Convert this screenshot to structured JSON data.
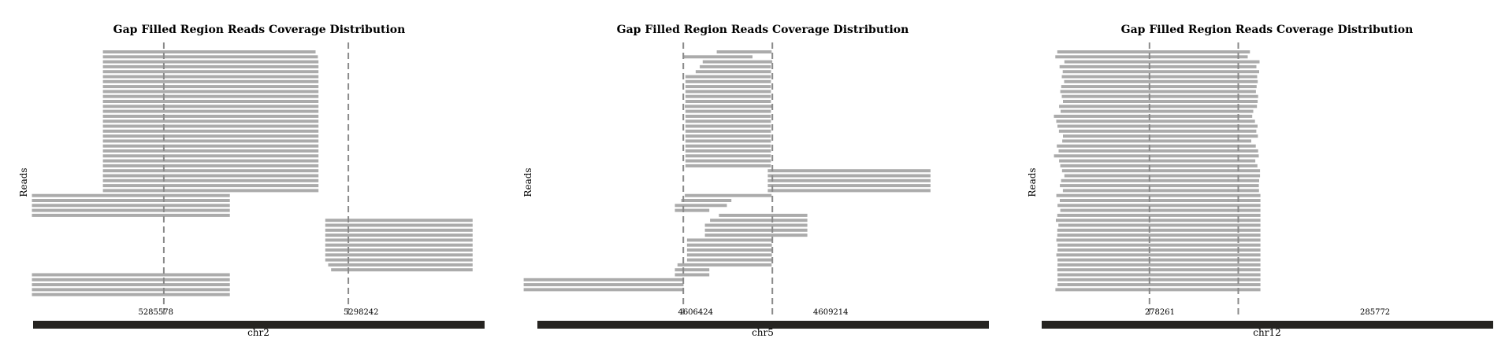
{
  "chart_data": [
    {
      "type": "read-alignment",
      "title": "Gap Filled Region Reads Coverage Distribution",
      "ylabel": "Reads",
      "chromosome": "chr2",
      "gap_boundaries": [
        5285578,
        5298242
      ],
      "boundary_labels": [
        "5285578",
        "5298242"
      ],
      "xlim": [
        5276610,
        5307590
      ],
      "reads": [
        [
          5281400,
          5295990
        ],
        [
          5281400,
          5296150
        ],
        [
          5281400,
          5296190
        ],
        [
          5281400,
          5296190
        ],
        [
          5281400,
          5296190
        ],
        [
          5281400,
          5296190
        ],
        [
          5281400,
          5296190
        ],
        [
          5281400,
          5296190
        ],
        [
          5281400,
          5296190
        ],
        [
          5281400,
          5296190
        ],
        [
          5281400,
          5296190
        ],
        [
          5281400,
          5296190
        ],
        [
          5281400,
          5296190
        ],
        [
          5281400,
          5296190
        ],
        [
          5281400,
          5296190
        ],
        [
          5281400,
          5296190
        ],
        [
          5281400,
          5296190
        ],
        [
          5281400,
          5296190
        ],
        [
          5281400,
          5296190
        ],
        [
          5281400,
          5296190
        ],
        [
          5281400,
          5296190
        ],
        [
          5281400,
          5296190
        ],
        [
          5281400,
          5296190
        ],
        [
          5281400,
          5296190
        ],
        [
          5281400,
          5296190
        ],
        [
          5281400,
          5296190
        ],
        [
          5281400,
          5296190
        ],
        [
          5281400,
          5296190
        ],
        [
          5281400,
          5296190
        ],
        [
          5276530,
          5290110
        ],
        [
          5276530,
          5290110
        ],
        [
          5276530,
          5290110
        ],
        [
          5276530,
          5290110
        ],
        [
          5276530,
          5290110
        ],
        [
          5296660,
          5306770
        ],
        [
          5296660,
          5306770
        ],
        [
          5296660,
          5306770
        ],
        [
          5296660,
          5306770
        ],
        [
          5296660,
          5306770
        ],
        [
          5296660,
          5306770
        ],
        [
          5296660,
          5306770
        ],
        [
          5296660,
          5306770
        ],
        [
          5296660,
          5306770
        ],
        [
          5296860,
          5306770
        ],
        [
          5297060,
          5306770
        ],
        [
          5276530,
          5290110
        ],
        [
          5276530,
          5290110
        ],
        [
          5276530,
          5290110
        ],
        [
          5276530,
          5290110
        ],
        [
          5276530,
          5290110
        ]
      ]
    },
    {
      "type": "read-alignment",
      "title": "Gap Filled Region Reads Coverage Distribution",
      "ylabel": "Reads",
      "chromosome": "chr5",
      "gap_boundaries": [
        4606424,
        4609214
      ],
      "boundary_labels": [
        "4606424",
        "4609214"
      ],
      "xlim": [
        4601850,
        4616000
      ],
      "reads": [
        [
          4607470,
          4609190
        ],
        [
          4606420,
          4608590
        ],
        [
          4607030,
          4609210
        ],
        [
          4606940,
          4609170
        ],
        [
          4606810,
          4609170
        ],
        [
          4606490,
          4609170
        ],
        [
          4606490,
          4609170
        ],
        [
          4606490,
          4609170
        ],
        [
          4606490,
          4609170
        ],
        [
          4606490,
          4609170
        ],
        [
          4606490,
          4609170
        ],
        [
          4606470,
          4609210
        ],
        [
          4606490,
          4609170
        ],
        [
          4606490,
          4609170
        ],
        [
          4606490,
          4609170
        ],
        [
          4606490,
          4609170
        ],
        [
          4606490,
          4609170
        ],
        [
          4606490,
          4609170
        ],
        [
          4606490,
          4609170
        ],
        [
          4606490,
          4609170
        ],
        [
          4606490,
          4609170
        ],
        [
          4606490,
          4609170
        ],
        [
          4606490,
          4609170
        ],
        [
          4606490,
          4609170
        ],
        [
          4609070,
          4614170
        ],
        [
          4609070,
          4614170
        ],
        [
          4609070,
          4614170
        ],
        [
          4609070,
          4614170
        ],
        [
          4609070,
          4614170
        ],
        [
          4606470,
          4609190
        ],
        [
          4606360,
          4607930
        ],
        [
          4606160,
          4607790
        ],
        [
          4606160,
          4607240
        ],
        [
          4607540,
          4610310
        ],
        [
          4607260,
          4610310
        ],
        [
          4607100,
          4610310
        ],
        [
          4607100,
          4610310
        ],
        [
          4607100,
          4610310
        ],
        [
          4606540,
          4609200
        ],
        [
          4606540,
          4609200
        ],
        [
          4606540,
          4609200
        ],
        [
          4606540,
          4609200
        ],
        [
          4606540,
          4609200
        ],
        [
          4606240,
          4609190
        ],
        [
          4606160,
          4607240
        ],
        [
          4606160,
          4607240
        ],
        [
          4601420,
          4606430
        ],
        [
          4601420,
          4606430
        ],
        [
          4601420,
          4606430
        ]
      ]
    },
    {
      "type": "read-alignment",
      "title": "Gap Filled Region Reads Coverage Distribution",
      "ylabel": "Reads",
      "chromosome": "chr12",
      "gap_boundaries": [
        278261,
        285772
      ],
      "boundary_labels": [
        "278261",
        "285772"
      ],
      "xlim": [
        269150,
        307320
      ],
      "reads": [
        [
          270470,
          286760
        ],
        [
          270300,
          286570
        ],
        [
          271070,
          287570
        ],
        [
          270660,
          287300
        ],
        [
          270930,
          287540
        ],
        [
          270850,
          287370
        ],
        [
          271050,
          287420
        ],
        [
          270800,
          287320
        ],
        [
          270720,
          287260
        ],
        [
          270850,
          287450
        ],
        [
          270950,
          287410
        ],
        [
          270620,
          287350
        ],
        [
          270750,
          287040
        ],
        [
          270180,
          286950
        ],
        [
          270380,
          287180
        ],
        [
          270480,
          287400
        ],
        [
          270610,
          287300
        ],
        [
          270950,
          287430
        ],
        [
          270890,
          286870
        ],
        [
          270430,
          287250
        ],
        [
          270580,
          287450
        ],
        [
          270190,
          287500
        ],
        [
          270620,
          287210
        ],
        [
          270720,
          287390
        ],
        [
          270870,
          287610
        ],
        [
          271070,
          287610
        ],
        [
          270790,
          287540
        ],
        [
          270690,
          287510
        ],
        [
          270940,
          287520
        ],
        [
          270390,
          287640
        ],
        [
          270680,
          287640
        ],
        [
          270490,
          287640
        ],
        [
          270720,
          287640
        ],
        [
          270470,
          287640
        ],
        [
          270350,
          287640
        ],
        [
          270560,
          287640
        ],
        [
          270470,
          287640
        ],
        [
          270470,
          287640
        ],
        [
          270390,
          287640
        ],
        [
          270490,
          287640
        ],
        [
          270490,
          287640
        ],
        [
          270390,
          287640
        ],
        [
          270490,
          287640
        ],
        [
          270490,
          287640
        ],
        [
          270470,
          287640
        ],
        [
          270490,
          287640
        ],
        [
          270490,
          287640
        ],
        [
          270490,
          287640
        ],
        [
          270310,
          287640
        ]
      ]
    }
  ],
  "colors": {
    "read": "#ababab",
    "boundary": "#8a8a8a",
    "chromosome_bar": "#262421",
    "text": "#000000"
  }
}
